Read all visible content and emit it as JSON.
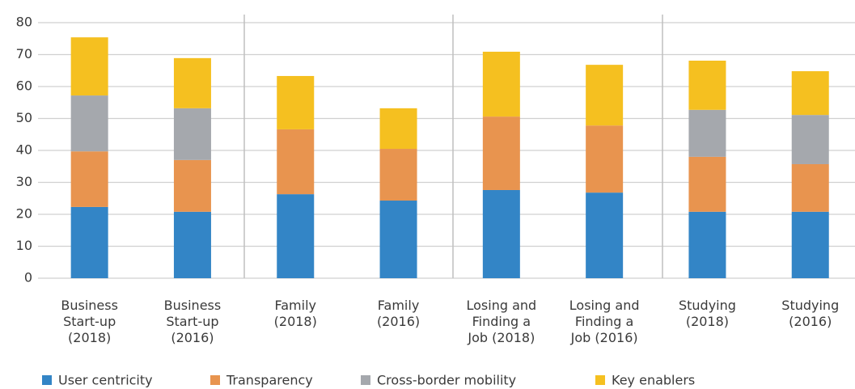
{
  "chart_data": {
    "type": "stacked_bar",
    "categories": [
      "Business Start-up (2018)",
      "Business Start-up (2016)",
      "Family (2018)",
      "Family (2016)",
      "Losing and Finding a Job (2018)",
      "Losing and Finding a Job (2016)",
      "Studying (2018)",
      "Studying (2016)"
    ],
    "series": [
      {
        "name": "User centricity",
        "color": "#3385c6",
        "values": [
          22.3,
          20.8,
          26.3,
          24.3,
          27.6,
          26.8,
          20.8,
          20.8
        ]
      },
      {
        "name": "Transparency",
        "color": "#e8944f",
        "values": [
          17.4,
          16.2,
          20.3,
          16.2,
          23.0,
          21.0,
          17.2,
          14.9
        ]
      },
      {
        "name": "Cross-border mobility",
        "color": "#a5a8ad",
        "values": [
          17.5,
          16.2,
          null,
          null,
          null,
          null,
          14.7,
          15.4
        ]
      },
      {
        "name": "Key enablers",
        "color": "#f5c020",
        "values": [
          18.2,
          15.7,
          16.7,
          12.7,
          20.3,
          19.0,
          15.4,
          13.7
        ]
      }
    ],
    "ylim": [
      0,
      80
    ],
    "yticks": [
      0,
      10,
      20,
      30,
      40,
      50,
      60,
      70,
      80
    ],
    "grid": true,
    "legend": "bottom"
  }
}
